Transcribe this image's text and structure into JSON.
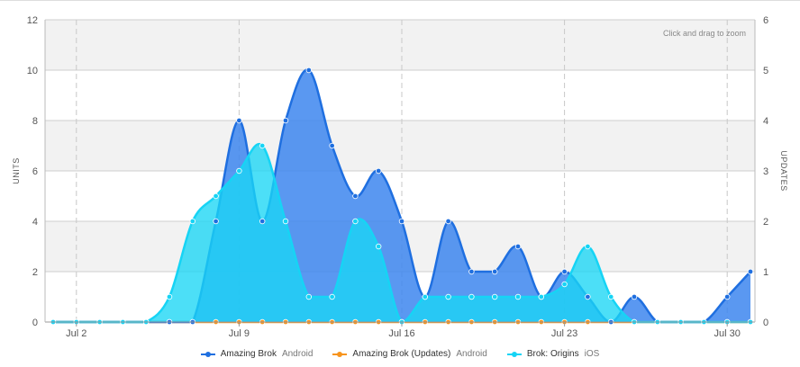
{
  "chart_data": {
    "type": "area",
    "zoom_hint": "Click and drag to zoom",
    "x_dates": [
      "Jul 1",
      "Jul 2",
      "Jul 3",
      "Jul 4",
      "Jul 5",
      "Jul 6",
      "Jul 7",
      "Jul 8",
      "Jul 9",
      "Jul 10",
      "Jul 11",
      "Jul 12",
      "Jul 13",
      "Jul 14",
      "Jul 15",
      "Jul 16",
      "Jul 17",
      "Jul 18",
      "Jul 19",
      "Jul 20",
      "Jul 21",
      "Jul 22",
      "Jul 23",
      "Jul 24",
      "Jul 25",
      "Jul 26",
      "Jul 27",
      "Jul 28",
      "Jul 29",
      "Jul 30",
      "Jul 31"
    ],
    "x_tick_labels": [
      "Jul 2",
      "Jul 9",
      "Jul 16",
      "Jul 23",
      "Jul 30"
    ],
    "y_left": {
      "label": "UNITS",
      "min": 0,
      "max": 12,
      "ticks": [
        0,
        2,
        4,
        6,
        8,
        10,
        12
      ]
    },
    "y_right": {
      "label": "UPDATES",
      "min": 0,
      "max": 6,
      "ticks": [
        0,
        1,
        2,
        3,
        4,
        5,
        6
      ]
    },
    "grid": true,
    "legend_position": "bottom-center",
    "series": [
      {
        "name": "Amazing Brok",
        "platform": "Android",
        "color": "#1f6fe0",
        "fill": "#3d86ef",
        "axis": "left",
        "values": [
          0,
          0,
          0,
          0,
          0,
          0,
          0,
          4,
          8,
          4,
          8,
          10,
          7,
          5,
          6,
          4,
          1,
          4,
          2,
          2,
          3,
          1,
          2,
          1,
          0,
          1,
          0,
          0,
          0,
          1,
          2
        ]
      },
      {
        "name": "Amazing Brok (Updates)",
        "platform": "Android",
        "color": "#f7941d",
        "fill": "#f7941d",
        "axis": "right",
        "values": [
          0,
          0,
          0,
          0,
          0,
          0,
          0,
          0,
          0,
          0,
          0,
          0,
          0,
          0,
          0,
          0,
          0,
          0,
          0,
          0,
          0,
          0,
          0,
          0,
          0,
          0,
          0,
          0,
          0,
          0,
          0
        ]
      },
      {
        "name": "Brok: Origins",
        "platform": "iOS",
        "color": "#16d4f5",
        "fill": "#19d6f5",
        "axis": "left",
        "values": [
          0,
          0,
          0,
          0,
          0,
          1,
          4,
          5,
          6,
          7,
          4,
          1,
          1,
          4,
          3,
          0,
          1,
          1,
          1,
          1,
          1,
          1,
          1.5,
          3,
          1,
          0,
          0,
          0,
          0,
          0,
          0
        ]
      }
    ]
  }
}
